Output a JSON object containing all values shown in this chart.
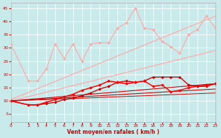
{
  "bg_color": "#c8eaea",
  "grid_color": "#ffffff",
  "x_ticks": [
    0,
    2,
    3,
    4,
    5,
    6,
    7,
    8,
    9,
    10,
    11,
    12,
    13,
    14,
    15,
    16,
    17,
    18,
    19,
    20,
    21,
    22,
    23
  ],
  "xlabel": "Vent moyen/en rafales ( km/h )",
  "ylabel": "",
  "ylim": [
    2,
    47
  ],
  "xlim": [
    0,
    23
  ],
  "yticks": [
    5,
    10,
    15,
    20,
    25,
    30,
    35,
    40,
    45
  ],
  "straight_lines": [
    {
      "x0": 0,
      "y0": 10.5,
      "x1": 23,
      "y1": 42,
      "color": "#ffaaaa",
      "lw": 0.9
    },
    {
      "x0": 0,
      "y0": 10.0,
      "x1": 23,
      "y1": 29,
      "color": "#ffaaaa",
      "lw": 0.9
    },
    {
      "x0": 0,
      "y0": 10.0,
      "x1": 23,
      "y1": 16.5,
      "color": "#cc0000",
      "lw": 0.8
    },
    {
      "x0": 0,
      "y0": 10.0,
      "x1": 23,
      "y1": 14.5,
      "color": "#cc0000",
      "lw": 0.8
    },
    {
      "x0": 0,
      "y0": 10.0,
      "x1": 23,
      "y1": 13.0,
      "color": "#cc0000",
      "lw": 0.7
    }
  ],
  "data_lines": [
    {
      "x": [
        0,
        2,
        3,
        4,
        5,
        6,
        7,
        8,
        9,
        10,
        11,
        12,
        13,
        14,
        15,
        16,
        17,
        18,
        19,
        20,
        21,
        22,
        23
      ],
      "y": [
        31.5,
        17.5,
        17.5,
        22,
        31.5,
        26,
        31.5,
        25,
        31.5,
        32,
        32,
        37.5,
        39.5,
        45,
        37.5,
        37,
        32.5,
        30.5,
        28,
        35,
        37,
        42,
        37.5
      ],
      "color": "#ffaaaa",
      "lw": 0.9,
      "marker": "D",
      "ms": 2.0,
      "zorder": 3
    },
    {
      "x": [
        0,
        2,
        3,
        4,
        5,
        6,
        7,
        8,
        9,
        10,
        11,
        12,
        13,
        14,
        15,
        16,
        17,
        18,
        19,
        20,
        21,
        22,
        23
      ],
      "y": [
        10,
        8.5,
        8.5,
        9.0,
        9.5,
        10.5,
        11.0,
        12.0,
        13.0,
        14.5,
        15.5,
        17.0,
        17.5,
        17.0,
        17.5,
        19.0,
        19.0,
        19.0,
        19.0,
        16.0,
        15.5,
        16.0,
        16.5
      ],
      "color": "#cc0000",
      "lw": 1.0,
      "marker": "D",
      "ms": 2.0,
      "zorder": 4
    },
    {
      "x": [
        0,
        2,
        3,
        4,
        5,
        6,
        7,
        8,
        9,
        10,
        11,
        12,
        13,
        14,
        15,
        16,
        17,
        18,
        19,
        20,
        21,
        22,
        23
      ],
      "y": [
        10,
        8.5,
        8.5,
        9.5,
        10.5,
        11.5,
        12.5,
        14.0,
        15.0,
        16.0,
        17.5,
        17.0,
        16.5,
        17.0,
        17.5,
        15.5,
        16.0,
        13.5,
        14.0,
        15.0,
        15.5,
        15.5,
        16.5
      ],
      "color": "#ff0000",
      "lw": 1.1,
      "marker": "D",
      "ms": 2.0,
      "zorder": 5
    }
  ]
}
